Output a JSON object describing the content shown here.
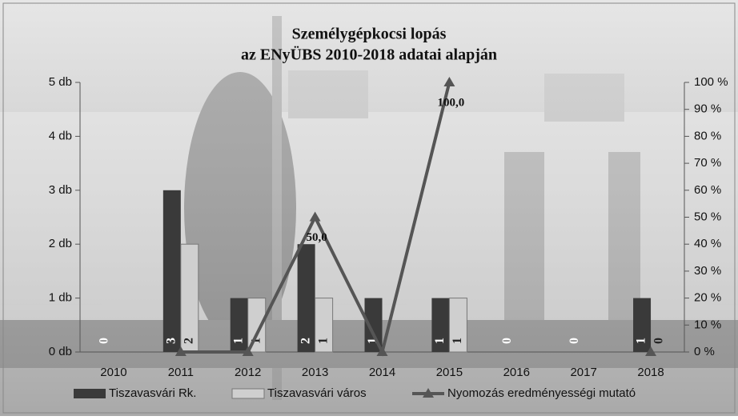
{
  "chart_data": {
    "type": "bar",
    "title": "Személygépkocsi lopás",
    "subtitle": "az ENyÜBS 2010-2018 adatai alapján",
    "categories": [
      "2010",
      "2011",
      "2012",
      "2013",
      "2014",
      "2015",
      "2016",
      "2017",
      "2018"
    ],
    "series": [
      {
        "name": "Tiszavasvári Rk.",
        "color": "#3a3a3a",
        "values": [
          0,
          3,
          1,
          2,
          1,
          1,
          0,
          0,
          1
        ]
      },
      {
        "name": "Tiszavasvári város",
        "color": "#cfcfcf",
        "values": [
          null,
          2,
          1,
          1,
          null,
          1,
          null,
          null,
          0
        ]
      },
      {
        "name": "Nyomozás eredményességi mutató",
        "color": "#555555",
        "type": "line",
        "axis": "y2",
        "values": [
          null,
          0,
          0,
          50,
          0,
          100,
          null,
          null,
          0
        ],
        "value_labels": [
          null,
          null,
          null,
          "50,0",
          null,
          "100,0",
          null,
          null,
          null
        ]
      }
    ],
    "ylim": [
      0,
      5
    ],
    "yticks": [
      {
        "value": 0,
        "label": "0 db"
      },
      {
        "value": 1,
        "label": "1 db"
      },
      {
        "value": 2,
        "label": "2 db"
      },
      {
        "value": 3,
        "label": "3 db"
      },
      {
        "value": 4,
        "label": "4 db"
      },
      {
        "value": 5,
        "label": "5 db"
      }
    ],
    "y2lim": [
      0,
      100
    ],
    "y2ticks": [
      {
        "value": 0,
        "label": "0 %"
      },
      {
        "value": 10,
        "label": "10 %"
      },
      {
        "value": 20,
        "label": "20 %"
      },
      {
        "value": 30,
        "label": "30 %"
      },
      {
        "value": 40,
        "label": "40 %"
      },
      {
        "value": 50,
        "label": "50 %"
      },
      {
        "value": 60,
        "label": "60 %"
      },
      {
        "value": 70,
        "label": "70 %"
      },
      {
        "value": 80,
        "label": "80 %"
      },
      {
        "value": 90,
        "label": "90 %"
      },
      {
        "value": 100,
        "label": "100 %"
      }
    ],
    "legend": "bottom"
  }
}
